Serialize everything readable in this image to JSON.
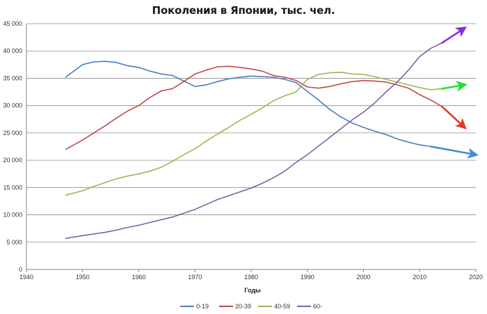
{
  "chart_data": {
    "type": "line",
    "title": "Поколения в Японии, тыс. чел.",
    "xlabel": "Годы",
    "ylabel": "",
    "xlim": [
      1940,
      2020
    ],
    "ylim": [
      0,
      45000
    ],
    "x_ticks": [
      1940,
      1950,
      1960,
      1970,
      1980,
      1990,
      2000,
      2010,
      2020
    ],
    "y_ticks": [
      0,
      5000,
      10000,
      15000,
      20000,
      25000,
      30000,
      35000,
      40000,
      45000
    ],
    "y_tick_labels": [
      "0",
      "5 000",
      "10 000",
      "15 000",
      "20 000",
      "25 000",
      "30 000",
      "35 000",
      "40 000",
      "45 000"
    ],
    "grid": "horizontal",
    "legend_position": "bottom",
    "series": [
      {
        "name": "0-19",
        "color": "#4a7ebb",
        "x": [
          1947,
          1948,
          1950,
          1952,
          1954,
          1956,
          1958,
          1960,
          1962,
          1964,
          1966,
          1968,
          1970,
          1972,
          1974,
          1976,
          1978,
          1980,
          1982,
          1984,
          1986,
          1988,
          1990,
          1992,
          1994,
          1996,
          1998,
          2000,
          2002,
          2004,
          2006,
          2008,
          2010,
          2012,
          2014
        ],
        "values": [
          35200,
          36000,
          37500,
          38000,
          38100,
          37900,
          37300,
          37000,
          36300,
          35800,
          35500,
          34500,
          33500,
          33800,
          34400,
          34900,
          35200,
          35400,
          35300,
          35200,
          34800,
          34200,
          32600,
          31000,
          29300,
          27900,
          26800,
          26000,
          25300,
          24700,
          23900,
          23300,
          22800,
          22500,
          22200
        ]
      },
      {
        "name": "20-39",
        "color": "#be4b48",
        "x": [
          1947,
          1950,
          1952,
          1954,
          1956,
          1958,
          1960,
          1962,
          1964,
          1966,
          1968,
          1970,
          1972,
          1974,
          1976,
          1978,
          1980,
          1982,
          1984,
          1986,
          1988,
          1990,
          1992,
          1994,
          1996,
          1998,
          2000,
          2002,
          2004,
          2006,
          2008,
          2010,
          2012,
          2014
        ],
        "values": [
          22000,
          23700,
          25000,
          26300,
          27700,
          29000,
          30000,
          31500,
          32700,
          33100,
          34400,
          35800,
          36500,
          37100,
          37200,
          37000,
          36700,
          36300,
          35500,
          35200,
          34600,
          33400,
          33200,
          33500,
          34000,
          34400,
          34600,
          34500,
          34300,
          33800,
          33200,
          32000,
          31000,
          29800
        ]
      },
      {
        "name": "40-59",
        "color": "#98b954",
        "x": [
          1947,
          1950,
          1952,
          1954,
          1956,
          1958,
          1960,
          1962,
          1964,
          1966,
          1968,
          1970,
          1972,
          1974,
          1976,
          1978,
          1980,
          1982,
          1984,
          1986,
          1988,
          1990,
          1992,
          1994,
          1996,
          1998,
          2000,
          2002,
          2004,
          2006,
          2008,
          2010,
          2012,
          2014
        ],
        "values": [
          13600,
          14400,
          15200,
          15900,
          16600,
          17100,
          17500,
          18000,
          18700,
          19800,
          21000,
          22100,
          23500,
          24800,
          26000,
          27300,
          28400,
          29600,
          30900,
          31800,
          32500,
          34800,
          35700,
          36000,
          36100,
          35800,
          35700,
          35300,
          34800,
          34300,
          33800,
          33300,
          32900,
          33100
        ]
      },
      {
        "name": "60-",
        "color": "#7d60a0",
        "x": [
          1947,
          1950,
          1952,
          1954,
          1956,
          1958,
          1960,
          1962,
          1964,
          1966,
          1968,
          1970,
          1972,
          1974,
          1976,
          1978,
          1980,
          1982,
          1984,
          1986,
          1988,
          1990,
          1992,
          1994,
          1996,
          1998,
          2000,
          2002,
          2004,
          2006,
          2008,
          2010,
          2012,
          2014
        ],
        "values": [
          5700,
          6200,
          6500,
          6800,
          7200,
          7700,
          8100,
          8600,
          9100,
          9600,
          10300,
          11000,
          11900,
          12800,
          13500,
          14200,
          14900,
          15800,
          16800,
          18000,
          19600,
          21000,
          22600,
          24200,
          25800,
          27400,
          28800,
          30500,
          32500,
          34300,
          36500,
          39000,
          40500,
          41500
        ]
      }
    ],
    "trend_arrows": [
      {
        "series": "0-19",
        "color": "#3b8fd9",
        "from": [
          2012,
          22500
        ],
        "to": [
          2020,
          21000
        ]
      },
      {
        "series": "20-39",
        "color": "#e03a2a",
        "from": [
          2014,
          29800
        ],
        "to": [
          2018,
          26000
        ]
      },
      {
        "series": "40-59",
        "color": "#22dd33",
        "from": [
          2014,
          33100
        ],
        "to": [
          2018,
          33800
        ]
      },
      {
        "series": "60-",
        "color": "#8a2be2",
        "from": [
          2014,
          41500
        ],
        "to": [
          2018,
          44200
        ]
      }
    ]
  }
}
